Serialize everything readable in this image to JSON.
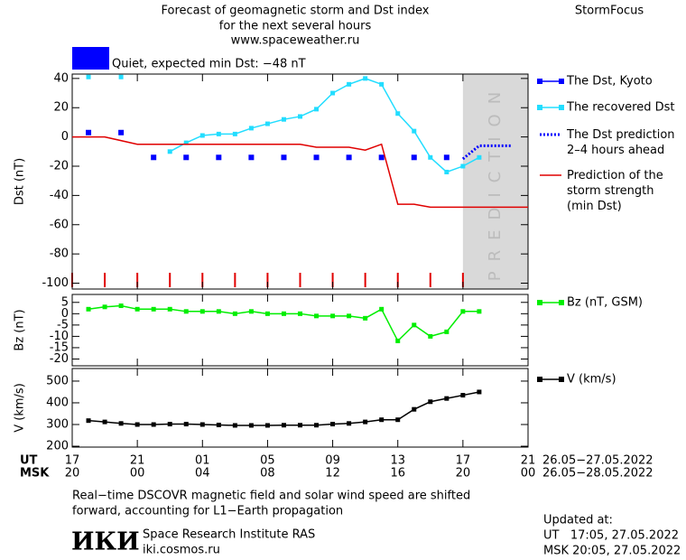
{
  "header": {
    "title": [
      "Forecast of geomagnetic storm and Dst index",
      "for the next several hours",
      "www.spaceweather.ru"
    ],
    "brand": "StormFocus",
    "status_text": "Quiet, expected min Dst: −48 nT",
    "status_color": "#0000ff"
  },
  "time_axis": {
    "xlim": [
      0,
      28
    ],
    "ut_label": "UT",
    "msk_label": "MSK",
    "ut_ticks": [
      {
        "value": 0,
        "label": "17"
      },
      {
        "value": 4,
        "label": "21"
      },
      {
        "value": 8,
        "label": "01"
      },
      {
        "value": 12,
        "label": "05"
      },
      {
        "value": 16,
        "label": "09"
      },
      {
        "value": 20,
        "label": "13"
      },
      {
        "value": 24,
        "label": "17"
      },
      {
        "value": 28,
        "label": "21"
      }
    ],
    "msk_ticks": [
      {
        "value": 0,
        "label": "20"
      },
      {
        "value": 4,
        "label": "00"
      },
      {
        "value": 8,
        "label": "04"
      },
      {
        "value": 12,
        "label": "08"
      },
      {
        "value": 16,
        "label": "12"
      },
      {
        "value": 20,
        "label": "16"
      },
      {
        "value": 24,
        "label": "20"
      },
      {
        "value": 28,
        "label": "00"
      }
    ],
    "ut_range": "26.05−27.05.2022",
    "msk_range": "26.05−28.05.2022"
  },
  "chart_data": [
    {
      "type": "line",
      "ylabel": "Dst (nT)",
      "ylim": [
        -104,
        43
      ],
      "yticks": [
        -100,
        -80,
        -60,
        -40,
        -20,
        0,
        20,
        40
      ],
      "prediction_zone": {
        "x": [
          24,
          28
        ],
        "label": "PREDICTION",
        "color": "#d9d9d9"
      },
      "series": [
        {
          "name": "The Dst, Kyoto",
          "color": "#0000ff",
          "style": "markers",
          "x": [
            1,
            3,
            5,
            7,
            9,
            11,
            13,
            15,
            17,
            19,
            21,
            23
          ],
          "values": [
            3,
            3,
            -14,
            -14,
            -14,
            -14,
            -14,
            -14,
            -14,
            -14,
            -14,
            -14
          ]
        },
        {
          "name": "The recovered Dst",
          "color": "#22ddff",
          "style": "line+markers",
          "x": [
            1,
            2,
            3,
            4,
            5,
            6,
            7,
            8,
            9,
            10,
            11,
            12,
            13,
            14,
            15,
            16,
            17,
            18,
            19,
            20,
            21,
            22,
            23,
            24,
            25
          ],
          "values": [
            41,
            null,
            41,
            null,
            null,
            -10,
            -4,
            1,
            2,
            2,
            6,
            9,
            12,
            14,
            19,
            30,
            36,
            40,
            36,
            16,
            4,
            -14,
            -24,
            -20,
            -14
          ]
        },
        {
          "name": "The Dst prediction\n2–4 hours ahead",
          "color": "#0000ff",
          "style": "dotted",
          "x": [
            24,
            25,
            26,
            27
          ],
          "values": [
            -15,
            -6,
            -6,
            -6
          ]
        },
        {
          "name": "Prediction of the\nstorm strength\n(min Dst)",
          "color": "#e00000",
          "style": "line",
          "x": [
            0,
            2,
            4,
            14,
            15,
            17,
            18,
            19,
            20,
            21,
            22,
            28
          ],
          "values": [
            0,
            0,
            -5,
            -5,
            -7,
            -7,
            -9,
            -5,
            -46,
            -46,
            -48,
            -48
          ]
        }
      ]
    },
    {
      "type": "line",
      "ylabel": "Bz (nT)",
      "ylim": [
        -23,
        8.5
      ],
      "yticks": [
        -20,
        -15,
        -10,
        -5,
        0,
        5
      ],
      "series": [
        {
          "name": "Bz (nT, GSM)",
          "color": "#00ee00",
          "style": "line+markers",
          "x": [
            1,
            2,
            3,
            4,
            5,
            6,
            7,
            8,
            9,
            10,
            11,
            12,
            13,
            14,
            15,
            16,
            17,
            18,
            19,
            20,
            21,
            22,
            23,
            24,
            25
          ],
          "values": [
            2,
            3,
            3.5,
            2,
            2,
            2,
            1,
            1,
            1,
            0,
            1,
            0,
            0,
            0,
            -1,
            -1,
            -1,
            -2,
            2,
            -12,
            -5,
            -10,
            -8,
            1,
            1
          ]
        }
      ]
    },
    {
      "type": "line",
      "ylabel": "V (km/s)",
      "ylim": [
        196,
        558
      ],
      "yticks": [
        200,
        300,
        400,
        500
      ],
      "series": [
        {
          "name": "V (km/s)",
          "color": "#000000",
          "style": "line+markers",
          "x": [
            1,
            2,
            3,
            4,
            5,
            6,
            7,
            8,
            9,
            10,
            11,
            12,
            13,
            14,
            15,
            16,
            17,
            18,
            19,
            20,
            21,
            22,
            23,
            24,
            25
          ],
          "values": [
            318,
            312,
            305,
            300,
            300,
            302,
            302,
            300,
            298,
            296,
            296,
            296,
            297,
            297,
            297,
            302,
            305,
            312,
            322,
            322,
            370,
            405,
            420,
            435,
            450
          ]
        }
      ]
    }
  ],
  "footer": {
    "note": [
      "Real−time DSCOVR magnetic field and solar wind speed are shifted",
      "forward, accounting for L1−Earth propagation"
    ],
    "logo": "ИКИ",
    "institute": "Space Research Institute RAS",
    "site": "iki.cosmos.ru",
    "updated": [
      "Updated at:",
      "UT   17:05, 27.05.2022",
      "MSK 20:05, 27.05.2022"
    ]
  }
}
